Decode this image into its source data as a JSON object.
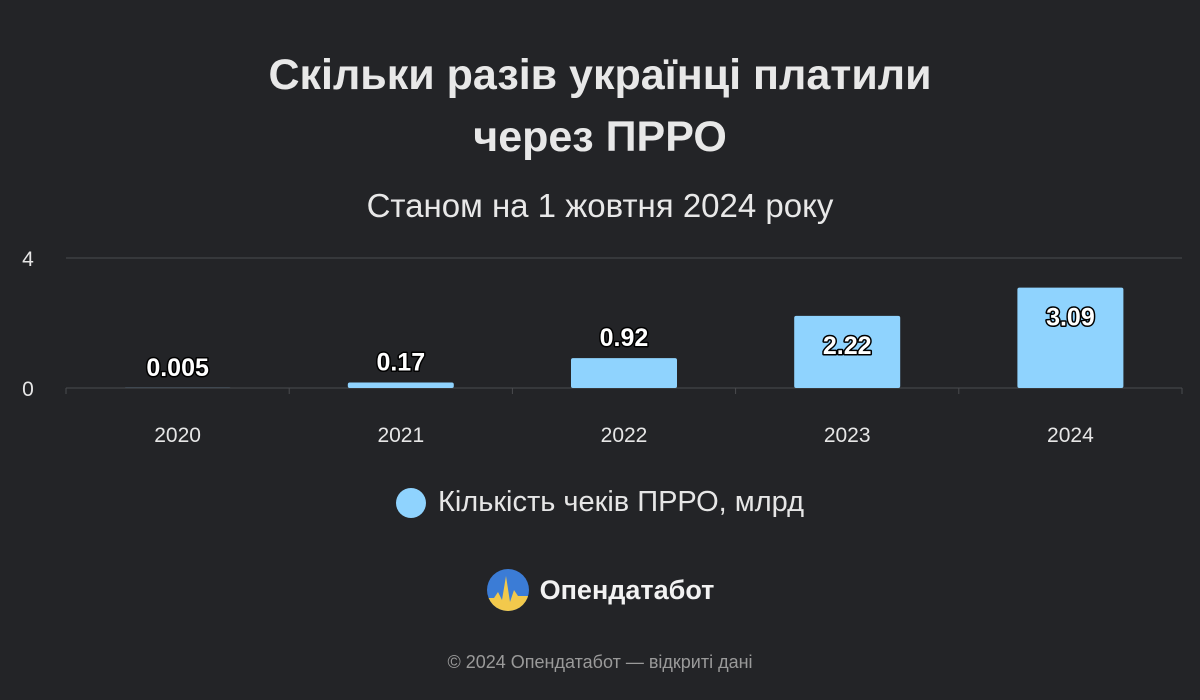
{
  "title_line1": "Скільки разів українці платили",
  "title_line2": "через ПРРО",
  "subtitle": "Станом на 1 жовтня 2024 року",
  "legend_label": "Кількість чеків ПРРО, млрд",
  "brand": "Опендатабот",
  "footer": "© 2024 Опендатабот — відкриті дані",
  "colors": {
    "background": "#232427",
    "bar": "#8fd3fe",
    "grid": "#4a4b4f",
    "logo_blue": "#3b7cd6",
    "logo_yellow": "#f2c94c"
  },
  "icons": {
    "logo": "opendatabot-logo-icon",
    "legend": "legend-swatch-circle"
  },
  "chart_data": {
    "type": "bar",
    "categories": [
      "2020",
      "2021",
      "2022",
      "2023",
      "2024"
    ],
    "series": [
      {
        "name": "Кількість чеків ПРРО, млрд",
        "values": [
          0.005,
          0.17,
          0.92,
          2.22,
          3.09
        ],
        "labels": [
          "0.005",
          "0.17",
          "0.92",
          "2.22",
          "3.09"
        ]
      }
    ],
    "ylim": [
      0,
      4
    ],
    "yticks": [
      "0",
      "4"
    ],
    "grid": true,
    "legend": "bottom"
  }
}
